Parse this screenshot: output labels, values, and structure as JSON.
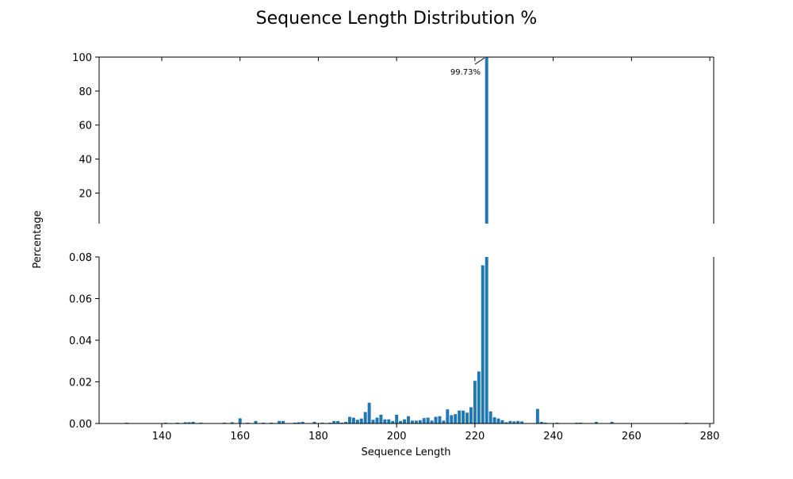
{
  "chart_data": {
    "type": "bar",
    "title": "Sequence Length Distribution %",
    "xlabel": "Sequence Length",
    "ylabel": "Percentage",
    "xlim": [
      124,
      281
    ],
    "x_ticks": [
      140,
      160,
      180,
      200,
      220,
      240,
      260,
      280
    ],
    "panels": [
      {
        "name": "upper",
        "ylim": [
          2,
          100
        ],
        "y_ticks": [
          20,
          40,
          60,
          80,
          100
        ]
      },
      {
        "name": "lower",
        "ylim": [
          0,
          0.08
        ],
        "y_ticks": [
          0.0,
          0.02,
          0.04,
          0.06,
          0.08
        ]
      }
    ],
    "bar_color": "#1f77b4",
    "annotation": {
      "text": "99.73%",
      "x": 223,
      "y": 99.73
    },
    "bars": [
      {
        "x": 131,
        "y": 0.0004
      },
      {
        "x": 141,
        "y": 0.0004
      },
      {
        "x": 144,
        "y": 0.0004
      },
      {
        "x": 146,
        "y": 0.0006
      },
      {
        "x": 147,
        "y": 0.0006
      },
      {
        "x": 148,
        "y": 0.0008
      },
      {
        "x": 150,
        "y": 0.0004
      },
      {
        "x": 156,
        "y": 0.0004
      },
      {
        "x": 158,
        "y": 0.0006
      },
      {
        "x": 160,
        "y": 0.0025
      },
      {
        "x": 162,
        "y": 0.0004
      },
      {
        "x": 164,
        "y": 0.0012
      },
      {
        "x": 166,
        "y": 0.0004
      },
      {
        "x": 168,
        "y": 0.0004
      },
      {
        "x": 170,
        "y": 0.0012
      },
      {
        "x": 171,
        "y": 0.0012
      },
      {
        "x": 174,
        "y": 0.0004
      },
      {
        "x": 175,
        "y": 0.0006
      },
      {
        "x": 176,
        "y": 0.0008
      },
      {
        "x": 179,
        "y": 0.0008
      },
      {
        "x": 181,
        "y": 0.0004
      },
      {
        "x": 183,
        "y": 0.0004
      },
      {
        "x": 184,
        "y": 0.0012
      },
      {
        "x": 185,
        "y": 0.0012
      },
      {
        "x": 186,
        "y": 0.0004
      },
      {
        "x": 187,
        "y": 0.0008
      },
      {
        "x": 188,
        "y": 0.0032
      },
      {
        "x": 189,
        "y": 0.0028
      },
      {
        "x": 190,
        "y": 0.0018
      },
      {
        "x": 191,
        "y": 0.0024
      },
      {
        "x": 192,
        "y": 0.0055
      },
      {
        "x": 193,
        "y": 0.01
      },
      {
        "x": 194,
        "y": 0.0018
      },
      {
        "x": 195,
        "y": 0.0028
      },
      {
        "x": 196,
        "y": 0.0042
      },
      {
        "x": 197,
        "y": 0.002
      },
      {
        "x": 198,
        "y": 0.002
      },
      {
        "x": 199,
        "y": 0.0012
      },
      {
        "x": 200,
        "y": 0.0042
      },
      {
        "x": 201,
        "y": 0.0012
      },
      {
        "x": 202,
        "y": 0.002
      },
      {
        "x": 203,
        "y": 0.0035
      },
      {
        "x": 204,
        "y": 0.0014
      },
      {
        "x": 205,
        "y": 0.0014
      },
      {
        "x": 206,
        "y": 0.0016
      },
      {
        "x": 207,
        "y": 0.0026
      },
      {
        "x": 208,
        "y": 0.0028
      },
      {
        "x": 209,
        "y": 0.0014
      },
      {
        "x": 210,
        "y": 0.0032
      },
      {
        "x": 211,
        "y": 0.0035
      },
      {
        "x": 212,
        "y": 0.0014
      },
      {
        "x": 213,
        "y": 0.0068
      },
      {
        "x": 214,
        "y": 0.004
      },
      {
        "x": 215,
        "y": 0.0045
      },
      {
        "x": 216,
        "y": 0.0062
      },
      {
        "x": 217,
        "y": 0.0062
      },
      {
        "x": 218,
        "y": 0.0052
      },
      {
        "x": 219,
        "y": 0.0078
      },
      {
        "x": 220,
        "y": 0.0205
      },
      {
        "x": 221,
        "y": 0.025
      },
      {
        "x": 222,
        "y": 0.076
      },
      {
        "x": 223,
        "y": 99.73
      },
      {
        "x": 224,
        "y": 0.0058
      },
      {
        "x": 225,
        "y": 0.003
      },
      {
        "x": 226,
        "y": 0.0024
      },
      {
        "x": 227,
        "y": 0.0016
      },
      {
        "x": 228,
        "y": 0.0006
      },
      {
        "x": 229,
        "y": 0.0012
      },
      {
        "x": 230,
        "y": 0.001
      },
      {
        "x": 231,
        "y": 0.0012
      },
      {
        "x": 232,
        "y": 0.001
      },
      {
        "x": 236,
        "y": 0.007
      },
      {
        "x": 237,
        "y": 0.0008
      },
      {
        "x": 238,
        "y": 0.0004
      },
      {
        "x": 241,
        "y": 0.0004
      },
      {
        "x": 246,
        "y": 0.0004
      },
      {
        "x": 247,
        "y": 0.0004
      },
      {
        "x": 251,
        "y": 0.0008
      },
      {
        "x": 255,
        "y": 0.0008
      },
      {
        "x": 274,
        "y": 0.0004
      }
    ]
  }
}
